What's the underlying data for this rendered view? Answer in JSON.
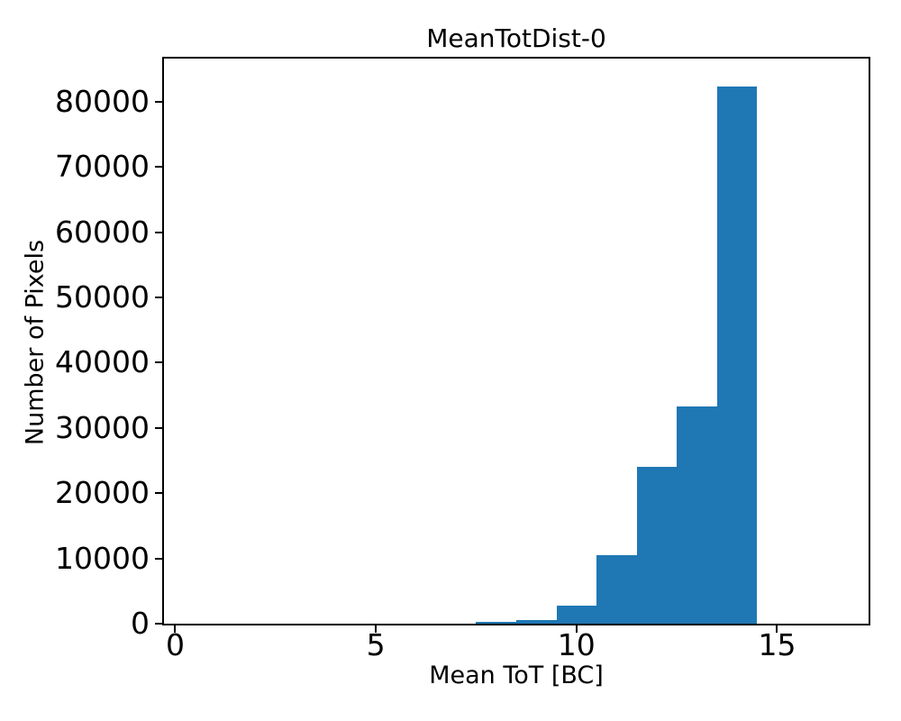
{
  "chart_data": {
    "type": "bar",
    "subtype": "histogram",
    "title": "MeanTotDist-0",
    "xlabel": "Mean ToT [BC]",
    "ylabel": "Number of Pixels",
    "bin_edges": [
      7.5,
      8.5,
      9.5,
      10.5,
      11.5,
      12.5,
      13.5,
      14.5
    ],
    "bin_centers": [
      8,
      9,
      10,
      11,
      12,
      13,
      14
    ],
    "counts": [
      250,
      600,
      2800,
      10500,
      24000,
      33300,
      82300
    ],
    "xlim": [
      -0.28,
      17.28
    ],
    "ylim": [
      0,
      86600
    ],
    "xticks": [
      0,
      5,
      10,
      15
    ],
    "yticks": [
      0,
      10000,
      20000,
      30000,
      40000,
      50000,
      60000,
      70000,
      80000
    ],
    "grid": false,
    "legend_position": "none"
  },
  "colors": {
    "bar": "#1f77b4",
    "axis": "#000000",
    "text": "#000000",
    "background": "#ffffff"
  }
}
